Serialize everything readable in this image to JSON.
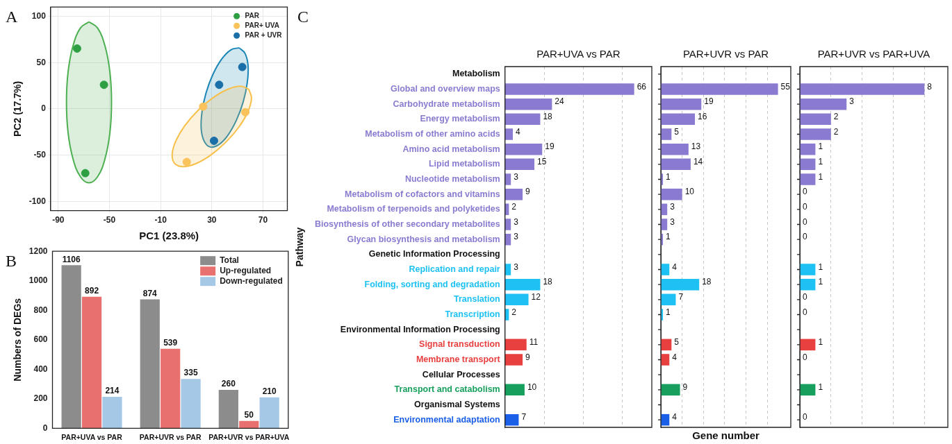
{
  "chart_data": [
    {
      "type": "scatter",
      "xlabel": "PC1 (23.8%)",
      "ylabel": "PC2 (17.7%)",
      "annotations": [
        "A"
      ],
      "xlim": [
        -96,
        89
      ],
      "ylim": [
        -110,
        110
      ],
      "xticks": [
        -90,
        -50,
        -10,
        30,
        70
      ],
      "yticks": [
        -100,
        -50,
        0,
        50,
        100
      ],
      "grid": true,
      "legend": "top right",
      "marker": "circle",
      "series": [
        {
          "name": "PAR",
          "color": "#2ea043",
          "x": [
            -75.3,
            -54.3,
            -68.9
          ],
          "values": [
            65.2,
            26,
            -69.5
          ]
        },
        {
          "name": "PAR+ UVA",
          "color": "#f9c25a",
          "x": [
            23.2,
            56.2,
            10.4
          ],
          "values": [
            2.4,
            -3.6,
            -57.4
          ]
        },
        {
          "name": "PAR + UVR",
          "color": "#1a6fa8",
          "x": [
            35.7,
            53.8,
            31.7
          ],
          "values": [
            26,
            45.2,
            -34.5
          ]
        },
        {
          "type": "area",
          "marker": "none",
          "color": "#4caf50",
          "x": [
            -66,
            -59.3,
            -53.6,
            -49.7,
            -48.4,
            -49.7,
            -53.6,
            -59.3,
            -66,
            -72.7,
            -78.4,
            -82.3,
            -83.6,
            -82.3,
            -78.4,
            -72.7,
            -66
          ],
          "values": [
            94,
            87.4,
            68.5,
            40.3,
            7,
            -26.3,
            -54.5,
            -73.4,
            -80,
            -73.4,
            -54.5,
            -26.3,
            7,
            40.3,
            68.5,
            87.4,
            94
          ]
        },
        {
          "type": "area",
          "marker": "none",
          "color": "#f7c04a",
          "x": [
            59,
            61,
            58.3,
            51.3,
            41,
            29.1,
            17.3,
            7.4,
            1,
            -1,
            1.7,
            8.7,
            19,
            30.9,
            42.7,
            52.6,
            59
          ],
          "values": [
            21,
            11.5,
            -2.7,
            -19.4,
            -36,
            -50,
            -59.3,
            -62.5,
            -59,
            -49.5,
            -35.3,
            -18.6,
            -2,
            12,
            21.3,
            24.5,
            21
          ]
        },
        {
          "type": "area",
          "marker": "none",
          "color": "#1a86b5",
          "x": [
            51.3,
            55.9,
            58.3,
            57.7,
            54.5,
            49.1,
            42.3,
            35.1,
            28.7,
            24.1,
            21.7,
            22.3,
            25.5,
            30.9,
            37.7,
            44.9,
            51.3
          ],
          "values": [
            66,
            60,
            46.8,
            28.4,
            7.5,
            -12.6,
            -29,
            -39,
            -41.2,
            -35.2,
            -22,
            -3.6,
            17.3,
            37.4,
            53.8,
            63.8,
            66
          ]
        }
      ]
    },
    {
      "type": "bar",
      "ylabel": "Numbers of DEGs",
      "annotations": [
        "B"
      ],
      "categories": [
        "PAR+UVA vs PAR",
        "PAR+UVR vs PAR",
        "PAR+UVR vs PAR+UVA"
      ],
      "ylim": [
        0,
        1200
      ],
      "yticks": [
        0,
        200,
        400,
        600,
        800,
        1000,
        1200
      ],
      "legend": "top right",
      "data_labels": true,
      "series": [
        {
          "name": "Total",
          "color": "#8c8c8c",
          "values": [
            1106,
            874,
            260
          ]
        },
        {
          "name": "Up-regulated",
          "color": "#e8716f",
          "values": [
            892,
            539,
            50
          ]
        },
        {
          "name": "Down-regulated",
          "color": "#a5c8e6",
          "values": [
            214,
            335,
            210
          ]
        }
      ]
    },
    {
      "type": "bar",
      "orientation": "horizontal",
      "title": "PAR+UVA vs PAR",
      "ylabel": "Pathway",
      "annotations": [
        "C"
      ],
      "tick_labels": "y",
      "grid": "x",
      "data_labels": true,
      "xlim": [
        0,
        75
      ],
      "xticks": [
        {
          "value": 20,
          "label": null
        },
        {
          "value": 40,
          "label": null
        },
        {
          "value": 60,
          "label": null
        }
      ],
      "categories": [
        "Metabolism",
        "Global and overview maps",
        "Carbohydrate metabolism",
        "Energy metabolism",
        "Metabolism of other amino acids",
        "Amino acid metabolism",
        "Lipid metabolism",
        "Nucleotide metabolism",
        "Metabolism of cofactors and vitamins",
        "Metabolism of terpenoids and polyketides",
        "Biosynthesis of other secondary metabolites",
        "Glycan biosynthesis and metabolism",
        "Genetic Information Processing",
        "Replication and repair",
        "Folding, sorting and degradation",
        "Translation",
        "Transcription",
        "Environmental Information Processing",
        "Signal transduction",
        "Membrane transport",
        "Cellular Processes",
        "Transport and catabolism",
        "Organismal Systems",
        "Environmental adaptation"
      ],
      "colors": [
        null,
        "#8b7bd0",
        "#8b7bd0",
        "#8b7bd0",
        "#8b7bd0",
        "#8b7bd0",
        "#8b7bd0",
        "#8b7bd0",
        "#8b7bd0",
        "#8b7bd0",
        "#8b7bd0",
        "#8b7bd0",
        null,
        "#1ec1f3",
        "#1ec1f3",
        "#1ec1f3",
        "#1ec1f3",
        null,
        "#e8403f",
        "#e8403f",
        null,
        "#17a05d",
        null,
        "#1a5fe8"
      ],
      "values": [
        null,
        66,
        24,
        18,
        4,
        19,
        15,
        3,
        9,
        2,
        3,
        3,
        null,
        3,
        18,
        12,
        2,
        null,
        11,
        9,
        null,
        10,
        null,
        7
      ]
    },
    {
      "type": "bar",
      "orientation": "horizontal",
      "title": "PAR+UVR vs PAR",
      "xlabel": "Gene number",
      "tick_labels": false,
      "grid": "x",
      "data_labels": true,
      "xlim": [
        0,
        61
      ],
      "xticks": [
        {
          "value": 10,
          "label": null
        },
        {
          "value": 20,
          "label": null
        },
        {
          "value": 30,
          "label": null
        },
        {
          "value": 40,
          "label": null
        },
        {
          "value": 50,
          "label": null
        }
      ],
      "categories": [
        null,
        null,
        null,
        null,
        null,
        null,
        null,
        null,
        null,
        null,
        null,
        null,
        null,
        null,
        null,
        null,
        null,
        null,
        null,
        null,
        null,
        null,
        null,
        null
      ],
      "colors": [
        null,
        "#8b7bd0",
        "#8b7bd0",
        "#8b7bd0",
        "#8b7bd0",
        "#8b7bd0",
        "#8b7bd0",
        "#8b7bd0",
        "#8b7bd0",
        "#8b7bd0",
        "#8b7bd0",
        "#8b7bd0",
        null,
        "#1ec1f3",
        "#1ec1f3",
        "#1ec1f3",
        "#1ec1f3",
        null,
        "#e8403f",
        "#e8403f",
        null,
        "#17a05d",
        null,
        "#1a5fe8"
      ],
      "values": [
        null,
        55,
        19,
        16,
        5,
        13,
        14,
        1,
        10,
        3,
        3,
        1,
        null,
        4,
        18,
        7,
        1,
        null,
        5,
        4,
        null,
        9,
        null,
        4
      ]
    },
    {
      "type": "bar",
      "orientation": "horizontal",
      "title": "PAR+UVR vs PAR+UVA",
      "tick_labels": false,
      "grid": "x",
      "data_labels": true,
      "xlim": [
        0,
        9.5
      ],
      "xticks": [
        {
          "value": 2,
          "label": null
        },
        {
          "value": 4,
          "label": null
        },
        {
          "value": 6,
          "label": null
        },
        {
          "value": 8,
          "label": null
        }
      ],
      "categories": [
        null,
        null,
        null,
        null,
        null,
        null,
        null,
        null,
        null,
        null,
        null,
        null,
        null,
        null,
        null,
        null,
        null,
        null,
        null,
        null,
        null,
        null,
        null,
        null
      ],
      "colors": [
        null,
        "#8b7bd0",
        "#8b7bd0",
        "#8b7bd0",
        "#8b7bd0",
        "#8b7bd0",
        "#8b7bd0",
        "#8b7bd0",
        "#8b7bd0",
        "#8b7bd0",
        "#8b7bd0",
        "#8b7bd0",
        null,
        "#1ec1f3",
        "#1ec1f3",
        "#1ec1f3",
        "#1ec1f3",
        null,
        "#e8403f",
        "#e8403f",
        null,
        "#17a05d",
        null,
        "#1a5fe8"
      ],
      "values": [
        null,
        8,
        3,
        2,
        2,
        1,
        1,
        1,
        0,
        0,
        0,
        0,
        null,
        1,
        1,
        0,
        0,
        null,
        1,
        0,
        null,
        1,
        null,
        0
      ]
    }
  ]
}
